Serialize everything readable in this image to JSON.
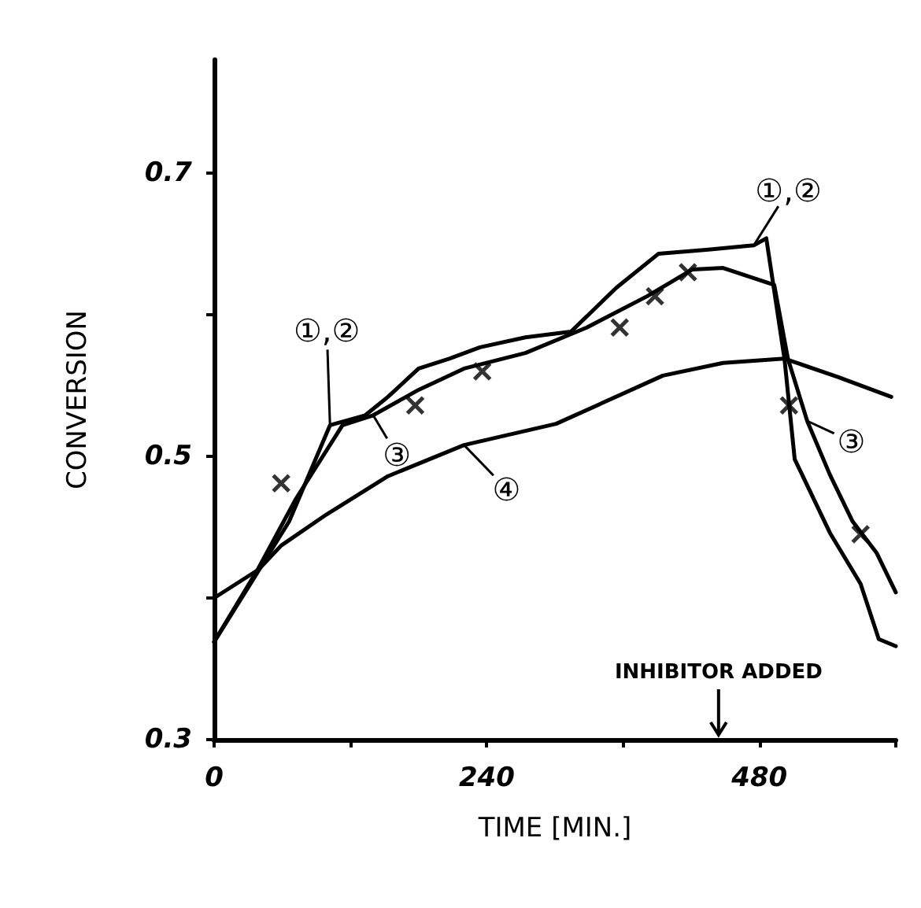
{
  "chart_data": {
    "type": "line",
    "xlabel": "TIME [MIN.]",
    "ylabel": "CONVERSION",
    "xlim": [
      0,
      600
    ],
    "ylim": [
      0.3,
      0.78
    ],
    "xticks": [
      0,
      {
        "value": 120,
        "label": null
      },
      240,
      {
        "value": 360,
        "label": null
      },
      480,
      {
        "value": 600,
        "label": null
      }
    ],
    "yticks": [
      0.3,
      {
        "value": 0.4,
        "label": null
      },
      0.5,
      {
        "value": 0.6,
        "label": null
      },
      0.7
    ],
    "grid": false,
    "line_style": "solid",
    "marker": "none",
    "series": [
      {
        "color": "#000000",
        "x": [
          0,
          32,
          66,
          102,
          133,
          153,
          180,
          207,
          234,
          274,
          314,
          354,
          391,
          435,
          475,
          486,
          502,
          511,
          542,
          569,
          585,
          600
        ],
        "values": [
          0.369,
          0.41,
          0.454,
          0.522,
          0.529,
          0.542,
          0.562,
          0.569,
          0.577,
          0.584,
          0.588,
          0.619,
          0.643,
          0.646,
          0.649,
          0.654,
          0.569,
          0.498,
          0.446,
          0.41,
          0.371,
          0.366
        ]
      },
      {
        "color": "#000000",
        "x": [
          0,
          39,
          72,
          113,
          140,
          180,
          220,
          274,
          328,
          381,
          421,
          448,
          493,
          505,
          522,
          542,
          562,
          583,
          600
        ],
        "values": [
          0.369,
          0.421,
          0.47,
          0.522,
          0.529,
          0.547,
          0.562,
          0.573,
          0.591,
          0.613,
          0.632,
          0.633,
          0.621,
          0.569,
          0.525,
          0.487,
          0.454,
          0.432,
          0.404
        ]
      },
      {
        "color": "#000000",
        "x": [
          0,
          39,
          59,
          99,
          153,
          220,
          301,
          395,
          448,
          502,
          549,
          596
        ],
        "values": [
          0.4,
          0.42,
          0.437,
          0.459,
          0.486,
          0.508,
          0.523,
          0.557,
          0.566,
          0.569,
          0.556,
          0.542
        ]
      },
      {
        "type": "scatter",
        "marker": "cross",
        "color": "#000000",
        "x": [
          59,
          177,
          236,
          357,
          388,
          417,
          506,
          569
        ],
        "values": [
          0.481,
          0.536,
          0.56,
          0.591,
          0.613,
          0.63,
          0.536,
          0.445
        ]
      }
    ],
    "annotations": [
      {
        "text": "①,②",
        "x": 102,
        "y": 0.522
      },
      {
        "text": "①,②",
        "x": 475,
        "y": 0.649
      },
      {
        "text": "③",
        "x": 140,
        "y": 0.529
      },
      {
        "text": "③",
        "x": 522,
        "y": 0.525
      },
      {
        "text": "④",
        "x": 220,
        "y": 0.508
      },
      "INHIBITOR ADDED"
    ]
  }
}
